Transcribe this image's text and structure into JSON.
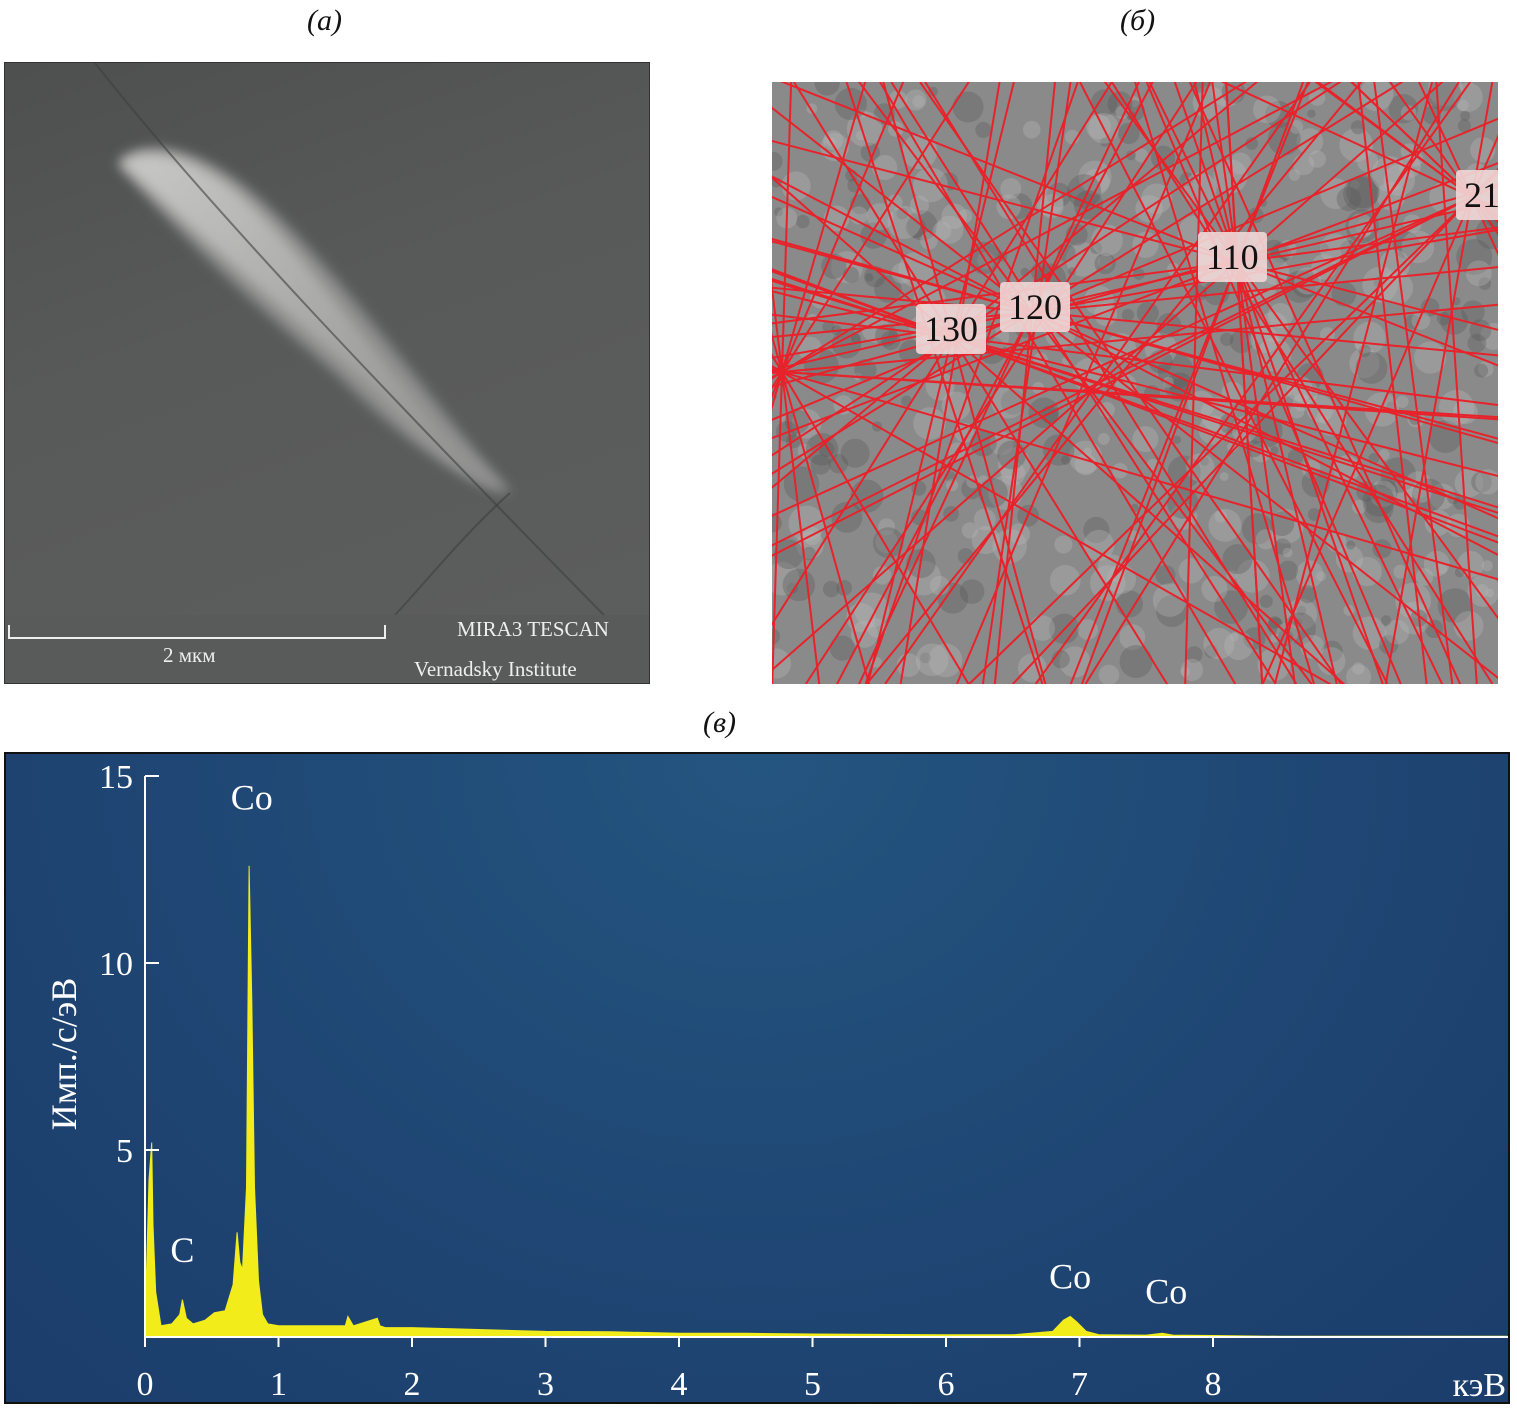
{
  "panels": {
    "a": {
      "caption": "(а)",
      "scale_label": "2 мкм",
      "instrument": "MIRA3 TESCAN",
      "institute": "Vernadsky Institute"
    },
    "b": {
      "caption": "(б)",
      "zone_labels": [
        "130",
        "120",
        "110",
        "21"
      ]
    },
    "c": {
      "caption": "(в)"
    }
  },
  "colors": {
    "spectrum": "#f2ec1a",
    "background": "#1f4674",
    "bands": "#e8222a"
  },
  "chart_data": {
    "type": "area",
    "title": "",
    "xlabel": "кэВ",
    "ylabel": "Имп./с/эВ",
    "xlim": [
      0,
      10.2
    ],
    "ylim": [
      0,
      15
    ],
    "xticks": [
      0,
      1,
      2,
      3,
      4,
      5,
      6,
      7,
      8
    ],
    "yticks": [
      5,
      10,
      15
    ],
    "grid": false,
    "series": [
      {
        "x": [
          0.0,
          0.03,
          0.05,
          0.06,
          0.08,
          0.12,
          0.2,
          0.26,
          0.28,
          0.31,
          0.36,
          0.45,
          0.52,
          0.6,
          0.66,
          0.69,
          0.71,
          0.73,
          0.76,
          0.78,
          0.8,
          0.82,
          0.85,
          0.88,
          0.92,
          1.0,
          1.3,
          1.5,
          1.52,
          1.56,
          1.74,
          1.76,
          1.8,
          2.0,
          2.5,
          3.0,
          3.5,
          4.0,
          4.5,
          5.0,
          5.5,
          6.0,
          6.5,
          6.8,
          6.88,
          6.93,
          6.98,
          7.05,
          7.15,
          7.5,
          7.62,
          7.7,
          8.0,
          8.5,
          9.0,
          10.2
        ],
        "y": [
          0.3,
          4.2,
          5.2,
          3.0,
          1.2,
          0.3,
          0.35,
          0.6,
          1.0,
          0.5,
          0.35,
          0.45,
          0.65,
          0.7,
          1.4,
          2.8,
          2.0,
          1.8,
          4.0,
          12.6,
          9.0,
          4.0,
          1.5,
          0.6,
          0.35,
          0.3,
          0.3,
          0.3,
          0.55,
          0.3,
          0.5,
          0.3,
          0.25,
          0.25,
          0.2,
          0.15,
          0.14,
          0.1,
          0.1,
          0.08,
          0.07,
          0.06,
          0.06,
          0.15,
          0.45,
          0.55,
          0.4,
          0.15,
          0.06,
          0.05,
          0.1,
          0.05,
          0.04,
          0.02,
          0.02,
          0.02
        ]
      }
    ],
    "annotations": [
      {
        "text": "C",
        "x": 0.28,
        "y": 2.0
      },
      {
        "text": "Co",
        "x": 0.8,
        "y": 14.1
      },
      {
        "text": "Co",
        "x": 6.93,
        "y": 1.3
      },
      {
        "text": "Co",
        "x": 7.65,
        "y": 0.9
      }
    ]
  }
}
